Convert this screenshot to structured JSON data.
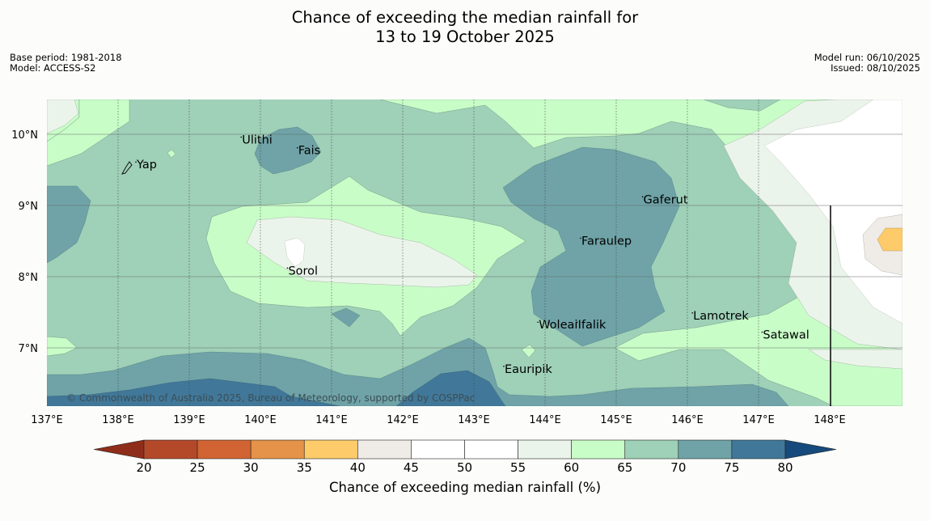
{
  "title": {
    "line1": "Chance of exceeding the median rainfall for",
    "line2": "13 to 19 October 2025"
  },
  "meta": {
    "base_period": "Base period: 1981-2018",
    "model": "Model: ACCESS-S2",
    "model_run": "Model run: 06/10/2025",
    "issued": "Issued: 08/10/2025"
  },
  "copyright": "© Commonwealth of Australia 2025, Bureau of Meteorology, supported by COSPPac",
  "axes": {
    "x_ticks": [
      "137°E",
      "138°E",
      "139°E",
      "140°E",
      "141°E",
      "142°E",
      "143°E",
      "144°E",
      "145°E",
      "146°E",
      "147°E",
      "148°E"
    ],
    "y_ticks": [
      "10°N",
      "9°N",
      "8°N",
      "7°N"
    ],
    "lon_range": [
      137,
      149
    ],
    "lat_range": [
      6.2,
      10.5
    ]
  },
  "places": [
    {
      "name": "Yap",
      "lon": 138.25,
      "lat": 9.52
    },
    {
      "name": "Ulithi",
      "lon": 139.73,
      "lat": 9.87
    },
    {
      "name": "Fais",
      "lon": 140.52,
      "lat": 9.72
    },
    {
      "name": "Gaferut",
      "lon": 145.37,
      "lat": 9.03
    },
    {
      "name": "Faraulep",
      "lon": 144.5,
      "lat": 8.45
    },
    {
      "name": "Sorol",
      "lon": 140.38,
      "lat": 8.03
    },
    {
      "name": "Woleai",
      "lon": 143.9,
      "lat": 7.27
    },
    {
      "name": "Ifalik",
      "lon": 144.45,
      "lat": 7.27
    },
    {
      "name": "Lamotrek",
      "lon": 146.07,
      "lat": 7.4
    },
    {
      "name": "Satawal",
      "lon": 147.05,
      "lat": 7.13
    },
    {
      "name": "Eauripik",
      "lon": 143.42,
      "lat": 6.65
    }
  ],
  "legend": {
    "label": "Chance of exceeding median rainfall (%)",
    "ticks": [
      "20",
      "25",
      "30",
      "35",
      "40",
      "45",
      "50",
      "55",
      "60",
      "65",
      "70",
      "75",
      "80"
    ],
    "colors": {
      "below20": "#8f2d1b",
      "20-25": "#b4492a",
      "25-30": "#d16432",
      "30-35": "#e49348",
      "35-40": "#fdcb6a",
      "40-45": "#efebe7",
      "45-50": "#ffffff",
      "50-55": "#ffffff",
      "55-60": "#ebf4eb",
      "60-65": "#c9fdc8",
      "65-70": "#9fd0b8",
      "70-75": "#6fa3a7",
      "75-80": "#417899",
      "above80": "#164a7c"
    }
  }
}
